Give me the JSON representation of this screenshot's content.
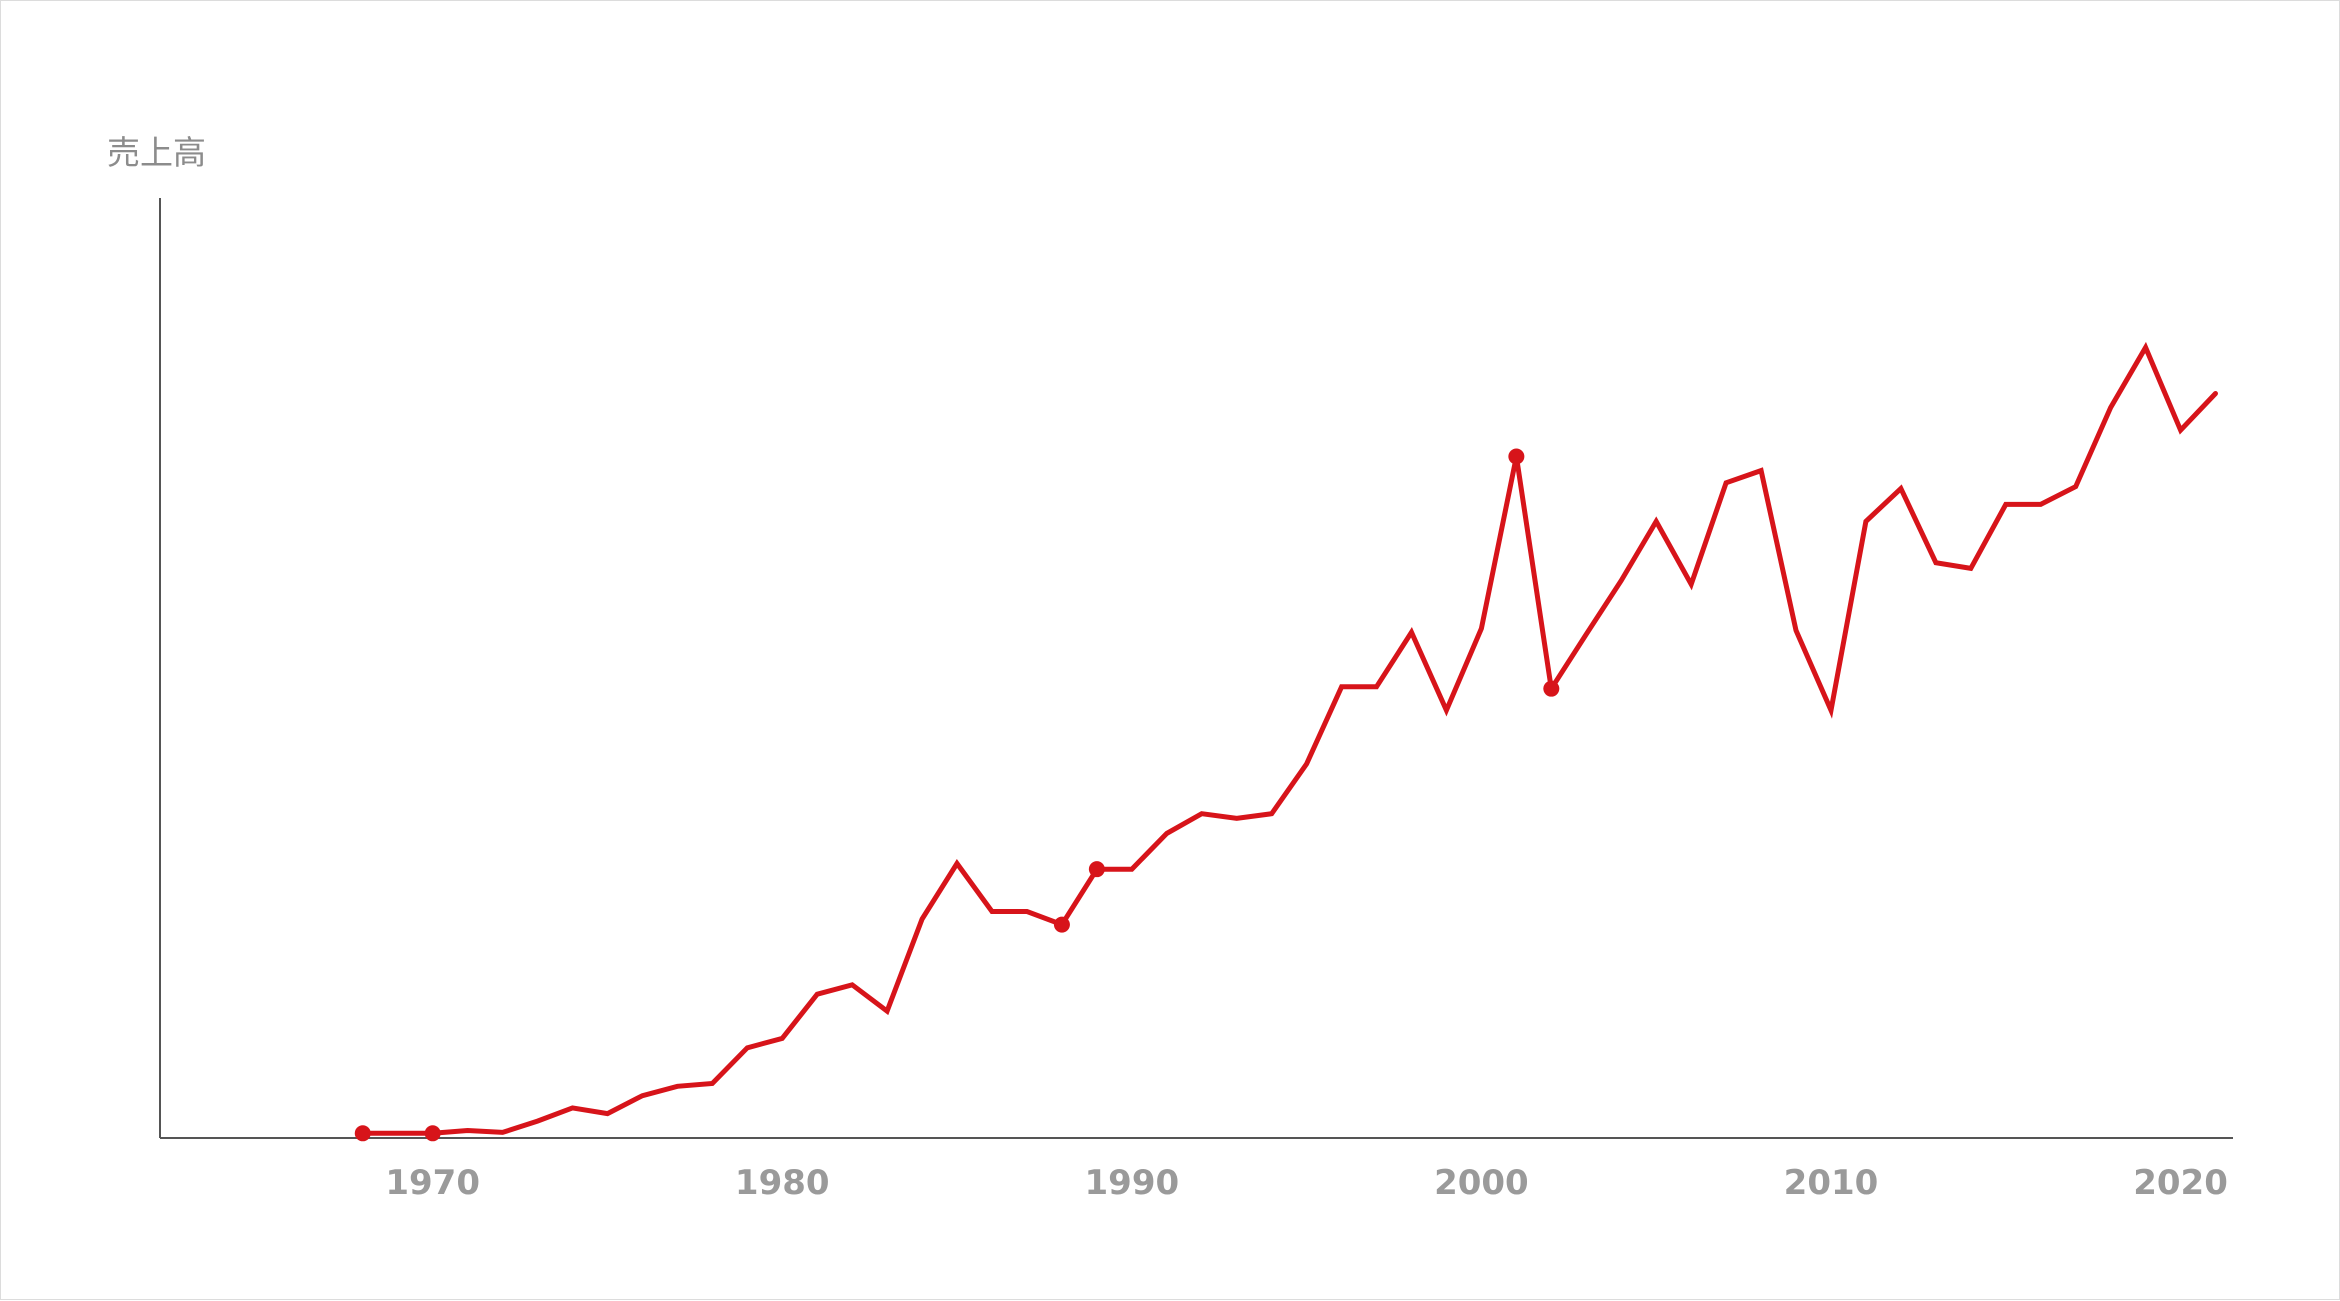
{
  "chart_data": {
    "type": "line",
    "ylabel": "売上高",
    "xlabel": "",
    "title": "",
    "xlim": [
      1962.2,
      2021.5
    ],
    "ylim": [
      0,
      100
    ],
    "x_ticks": [
      1970,
      1980,
      1990,
      2000,
      2010,
      2020
    ],
    "grid": false,
    "color": "#d7141a",
    "series": [
      {
        "x": [
          1968,
          1969,
          1970,
          1971,
          1972,
          1973,
          1974,
          1975,
          1976,
          1977,
          1978,
          1979,
          1980,
          1981,
          1982,
          1983,
          1984,
          1985,
          1986,
          1987,
          1988,
          1989,
          1990,
          1991,
          1992,
          1993,
          1994,
          1995,
          1996,
          1997,
          1998,
          1999,
          2000,
          2001,
          2002,
          2003,
          2004,
          2005,
          2006,
          2007,
          2008,
          2009,
          2010,
          2011,
          2012,
          2013,
          2014,
          2015,
          2016,
          2017,
          2018,
          2019,
          2020,
          2021
        ],
        "y": [
          0.5,
          0.5,
          0.5,
          0.8,
          0.6,
          1.8,
          3.2,
          2.6,
          4.5,
          5.5,
          5.8,
          9.6,
          10.6,
          15.3,
          16.3,
          13.5,
          23.3,
          29.2,
          24.1,
          24.1,
          22.7,
          28.6,
          28.6,
          32.4,
          34.5,
          34.0,
          34.5,
          39.8,
          48.0,
          48.0,
          53.8,
          45.5,
          54.2,
          72.5,
          47.8,
          53.6,
          59.3,
          65.6,
          58.9,
          69.7,
          71.0,
          54.0,
          45.5,
          65.6,
          69.1,
          61.2,
          60.6,
          67.4,
          67.4,
          69.3,
          77.7,
          84.1,
          75.3,
          79.2
        ]
      }
    ],
    "highlighted_points_x": [
      1968,
      1970,
      1988,
      1989,
      2001,
      2002
    ]
  }
}
